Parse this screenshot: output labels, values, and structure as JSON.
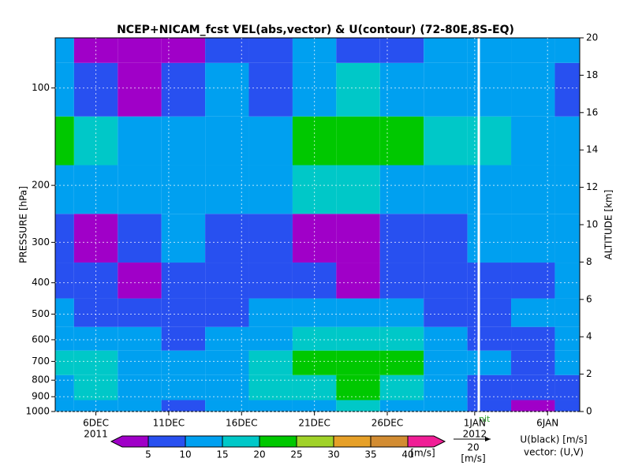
{
  "chart_data": {
    "type": "contour",
    "title": "NCEP+NICAM_fcst VEL(abs,vector) & U(contour)   (72-80E,8S-EQ)",
    "ylabel": "PRESSURE [hPa]",
    "y2label": "ALTITUDE [km]",
    "log_y": true,
    "xlim": [
      "2011-12-03T05:00",
      "2012-01-08T05:00"
    ],
    "xticks": [
      {
        "value": "2011-12-06",
        "label": "6DEC"
      },
      {
        "value": "2011-12-11",
        "label": "11DEC"
      },
      {
        "value": "2011-12-16",
        "label": "16DEC"
      },
      {
        "value": "2011-12-21",
        "label": "21DEC"
      },
      {
        "value": "2011-12-26",
        "label": "26DEC"
      },
      {
        "value": "2012-01-01",
        "label": "1JAN"
      },
      {
        "value": "2012-01-06",
        "label": "6JAN"
      }
    ],
    "year_labels": [
      {
        "value": "2011-12-06",
        "label": "2011"
      },
      {
        "value": "2012-01-01",
        "label": "2012"
      }
    ],
    "ylim": [
      1000,
      70
    ],
    "yticks": [
      100,
      200,
      300,
      400,
      500,
      600,
      700,
      800,
      900,
      1000
    ],
    "y2lim": [
      0,
      20
    ],
    "y2ticks": [
      0,
      2,
      4,
      6,
      8,
      10,
      12,
      14,
      16,
      18,
      20
    ],
    "x": [
      "2011-12-03",
      "2011-12-06",
      "2011-12-09",
      "2011-12-12",
      "2011-12-15",
      "2011-12-18",
      "2011-12-21",
      "2011-12-24",
      "2011-12-27",
      "2011-12-30",
      "2012-01-02",
      "2012-01-05",
      "2012-01-08"
    ],
    "levels": [
      1000,
      850,
      700,
      600,
      500,
      400,
      300,
      200,
      150,
      100,
      70
    ],
    "values": [
      [
        12,
        12,
        10,
        8,
        10,
        12,
        14,
        15,
        14,
        10,
        6,
        4,
        8
      ],
      [
        14,
        15,
        12,
        10,
        12,
        16,
        18,
        20,
        18,
        12,
        8,
        6,
        8
      ],
      [
        15,
        16,
        12,
        10,
        12,
        17,
        22,
        22,
        20,
        14,
        10,
        8,
        10
      ],
      [
        13,
        12,
        10,
        8,
        10,
        14,
        18,
        18,
        16,
        10,
        8,
        8,
        10
      ],
      [
        10,
        9,
        8,
        7,
        8,
        10,
        12,
        12,
        10,
        8,
        9,
        10,
        12
      ],
      [
        6,
        5,
        4,
        6,
        7,
        6,
        6,
        4,
        5,
        7,
        8,
        9,
        10
      ],
      [
        8,
        4,
        7,
        10,
        8,
        6,
        4,
        3,
        5,
        9,
        10,
        11,
        12
      ],
      [
        14,
        12,
        14,
        13,
        14,
        12,
        15,
        16,
        14,
        12,
        14,
        13,
        12
      ],
      [
        22,
        18,
        12,
        10,
        12,
        14,
        22,
        24,
        22,
        16,
        15,
        12,
        12
      ],
      [
        12,
        8,
        4,
        6,
        12,
        8,
        14,
        16,
        12,
        10,
        12,
        10,
        8
      ],
      [
        10,
        4,
        3,
        3,
        6,
        6,
        10,
        8,
        6,
        12,
        10,
        10,
        12
      ]
    ],
    "colorbar": {
      "bounds": [
        5,
        10,
        15,
        20,
        25,
        30,
        35,
        40
      ],
      "colors": [
        "#a000c8",
        "#2850f0",
        "#00a0f0",
        "#00c8c8",
        "#00c800",
        "#a0d228",
        "#e6a028",
        "#d28c32",
        "#f01e96"
      ],
      "unit": "[m/s]"
    },
    "vector_ref": {
      "value": 20,
      "unit": "[m/s]"
    },
    "notes": [
      "U(black) [m/s]",
      "vector: (U,V)"
    ],
    "init_label": "nit"
  }
}
